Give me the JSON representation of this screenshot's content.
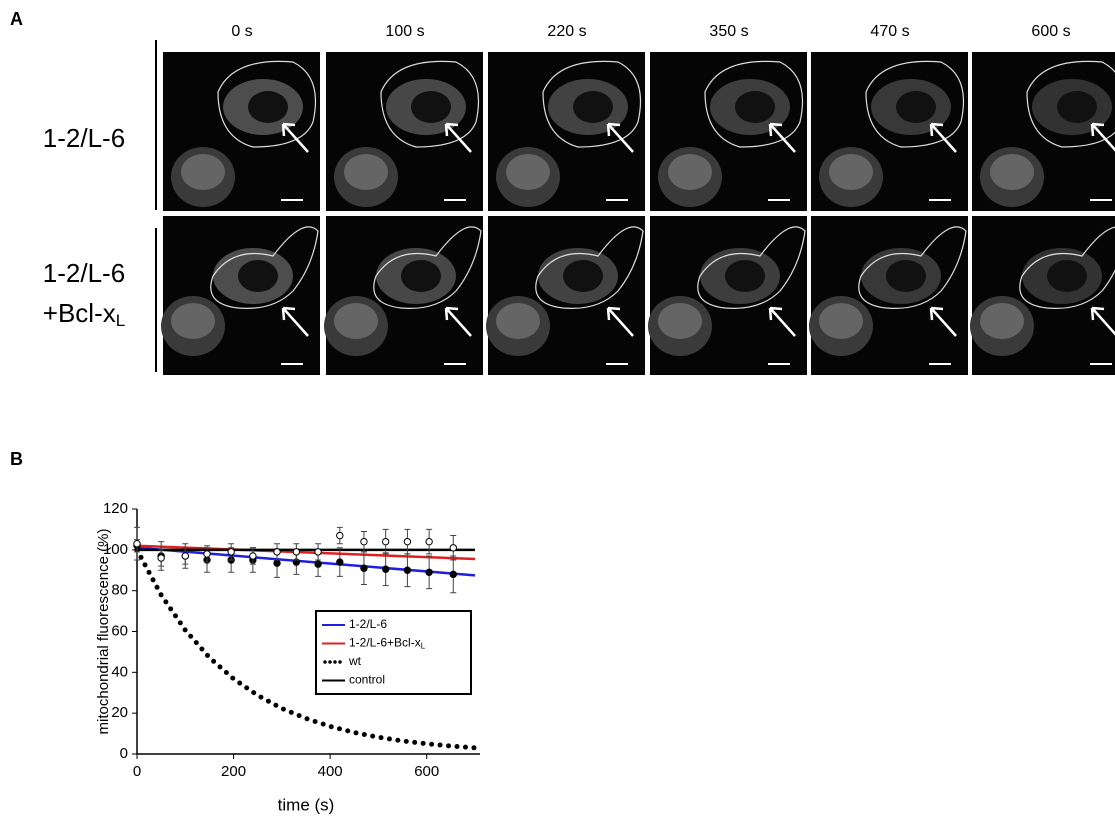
{
  "panel_a": {
    "letter": "A",
    "times": [
      "0 s",
      "100 s",
      "220 s",
      "350 s",
      "470 s",
      "600 s"
    ],
    "rows": [
      {
        "label": [
          "1-2/L-6"
        ]
      },
      {
        "label": [
          "1-2/L-6",
          "+Bcl-x"
        ],
        "sub": "L"
      }
    ]
  },
  "panel_b": {
    "letter": "B"
  },
  "chart_data": {
    "type": "line",
    "xlabel": "time (s)",
    "ylabel": "mitochondrial fluorescence (%)",
    "xlim": [
      0,
      700
    ],
    "ylim": [
      0,
      120
    ],
    "xticks": [
      0,
      200,
      400,
      600
    ],
    "yticks": [
      0,
      20,
      40,
      60,
      80,
      100,
      120
    ],
    "series": [
      {
        "name": "1-2/L-6",
        "color": "#1f1fe0",
        "style": "solid",
        "x": [
          0,
          700
        ],
        "values": [
          101,
          87.5
        ]
      },
      {
        "name": "1-2/L-6+Bcl-x",
        "name_sub": "L",
        "color": "#e01f1f",
        "style": "solid",
        "x": [
          0,
          700
        ],
        "values": [
          102,
          95.5
        ]
      },
      {
        "name": "wt",
        "color": "#000000",
        "style": "dotted",
        "x": [
          0,
          50,
          100,
          150,
          200,
          250,
          300,
          350,
          400,
          450,
          500,
          550,
          600,
          650,
          700
        ],
        "values": [
          100,
          77.9,
          60.7,
          47.2,
          36.8,
          28.7,
          22.3,
          17.4,
          13.5,
          10.5,
          8.2,
          6.4,
          5.0,
          3.9,
          3.0
        ]
      },
      {
        "name": "control",
        "color": "#000000",
        "style": "solid",
        "x": [
          0,
          700
        ],
        "values": [
          100,
          100
        ]
      },
      {
        "color": "#000000",
        "style": "filled-marker",
        "x": [
          0,
          50,
          100,
          145,
          195,
          240,
          290,
          330,
          375,
          420,
          470,
          515,
          560,
          605,
          655
        ],
        "values": [
          102,
          97,
          97,
          95,
          95,
          95,
          93.5,
          94,
          93,
          94,
          91,
          90.5,
          90,
          89,
          88
        ],
        "errors": [
          3,
          7,
          6,
          6,
          6,
          6,
          7,
          6,
          6,
          7,
          8,
          8,
          8,
          8,
          9
        ]
      },
      {
        "color": "#000000",
        "style": "open-marker",
        "x": [
          0,
          50,
          100,
          145,
          195,
          240,
          290,
          330,
          375,
          420,
          470,
          515,
          560,
          605,
          655
        ],
        "values": [
          103,
          96,
          97,
          98,
          99,
          97,
          99,
          99,
          99,
          107,
          104,
          104,
          104,
          104,
          101
        ],
        "errors": [
          8,
          4,
          4,
          4,
          4,
          4,
          4,
          4,
          4,
          4,
          5,
          6,
          6,
          6,
          6
        ]
      }
    ]
  }
}
